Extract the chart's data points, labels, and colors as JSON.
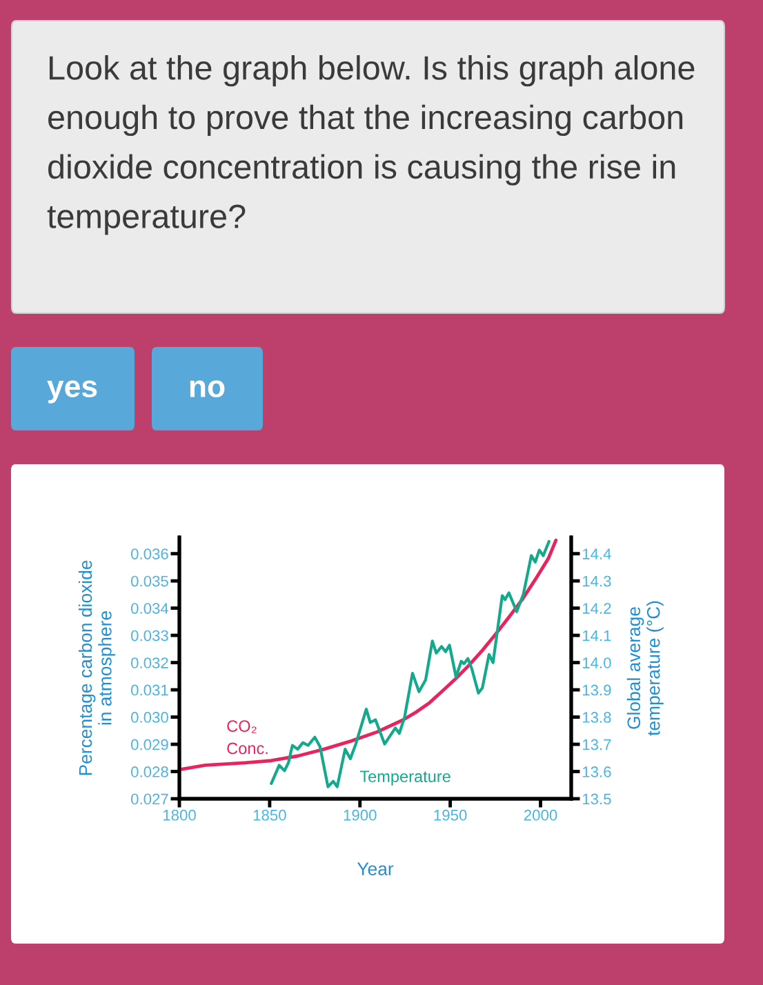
{
  "chart_data": {
    "type": "line",
    "title": "Look at the graph below. Is this graph alone enough to prove that the increasing carbon dioxide concentration is causing the rise in temperature?",
    "annotations": [
      "yes",
      "no"
    ],
    "xlabel": "Year",
    "ylabel": "Percentage carbon dioxide\nin atmosphere",
    "y2label": "Global average\ntemperature (°C)",
    "xlim": [
      1800,
      2017
    ],
    "xticks": [
      1800,
      1850,
      1900,
      1950,
      2000
    ],
    "ylim": [
      0.027,
      0.0366
    ],
    "yticks": [
      0.027,
      0.028,
      0.029,
      {
        "value": 0.03,
        "label": "0.030"
      },
      0.031,
      0.032,
      0.033,
      0.034,
      0.035,
      0.036
    ],
    "y2lim": [
      13.5,
      14.46
    ],
    "y2ticks": [
      13.5,
      13.6,
      13.7,
      13.8,
      13.9,
      {
        "value": 14.0,
        "label": "14.0"
      },
      14.1,
      14.2,
      14.3,
      14.4
    ],
    "grid": false,
    "legend": false,
    "marker": "none",
    "line_style": "solid",
    "series": [
      {
        "name": "CO₂\nConc.",
        "color": "#e8245f",
        "x": [
          1800.9,
          1814.3,
          1836.3,
          1850.9,
          1865.5,
          1880.1,
          1894.7,
          1909.4,
          1924.0,
          1931.3,
          1938.6,
          1945.9,
          1953.2,
          1960.5,
          1967.8,
          1975.1,
          1982.5,
          1989.8,
          1997.1,
          2004.4,
          2008.5
        ],
        "values": [
          0.02808,
          0.02823,
          0.02832,
          0.0284,
          0.02857,
          0.02882,
          0.02911,
          0.02945,
          0.0299,
          0.03019,
          0.03053,
          0.03097,
          0.03142,
          0.03191,
          0.03245,
          0.03304,
          0.03367,
          0.03431,
          0.03505,
          0.03583,
          0.03649
        ]
      },
      {
        "name": "Temperature",
        "color": "#14a88c",
        "axis": "y2",
        "x": [
          1850.9,
          1855.3,
          1858.2,
          1860.4,
          1862.6,
          1865.5,
          1868.4,
          1871.3,
          1875.0,
          1877.9,
          1882.3,
          1885.2,
          1887.4,
          1891.8,
          1894.7,
          1897.7,
          1903.5,
          1905.7,
          1908.6,
          1913.7,
          1919.6,
          1921.8,
          1924.7,
          1929.1,
          1932.7,
          1936.4,
          1940.1,
          1942.3,
          1945.2,
          1947.4,
          1949.6,
          1953.2,
          1956.1,
          1957.6,
          1959.8,
          1962.0,
          1965.6,
          1967.8,
          1971.5,
          1973.7,
          1978.8,
          1980.3,
          1982.5,
          1986.8,
          1990.5,
          1994.9,
          1997.1,
          1999.3,
          2001.5,
          2004.7
        ],
        "values": [
          13.556,
          13.623,
          13.603,
          13.632,
          13.696,
          13.682,
          13.706,
          13.696,
          13.726,
          13.691,
          13.544,
          13.564,
          13.544,
          13.682,
          13.647,
          13.701,
          13.829,
          13.78,
          13.79,
          13.701,
          13.76,
          13.74,
          13.799,
          13.961,
          13.893,
          13.937,
          14.079,
          14.035,
          14.059,
          14.04,
          14.064,
          13.947,
          14.005,
          13.996,
          14.015,
          13.976,
          13.888,
          13.907,
          14.03,
          14.0,
          14.246,
          14.231,
          14.256,
          14.187,
          14.251,
          14.393,
          14.369,
          14.413,
          14.393,
          14.445
        ]
      }
    ]
  }
}
